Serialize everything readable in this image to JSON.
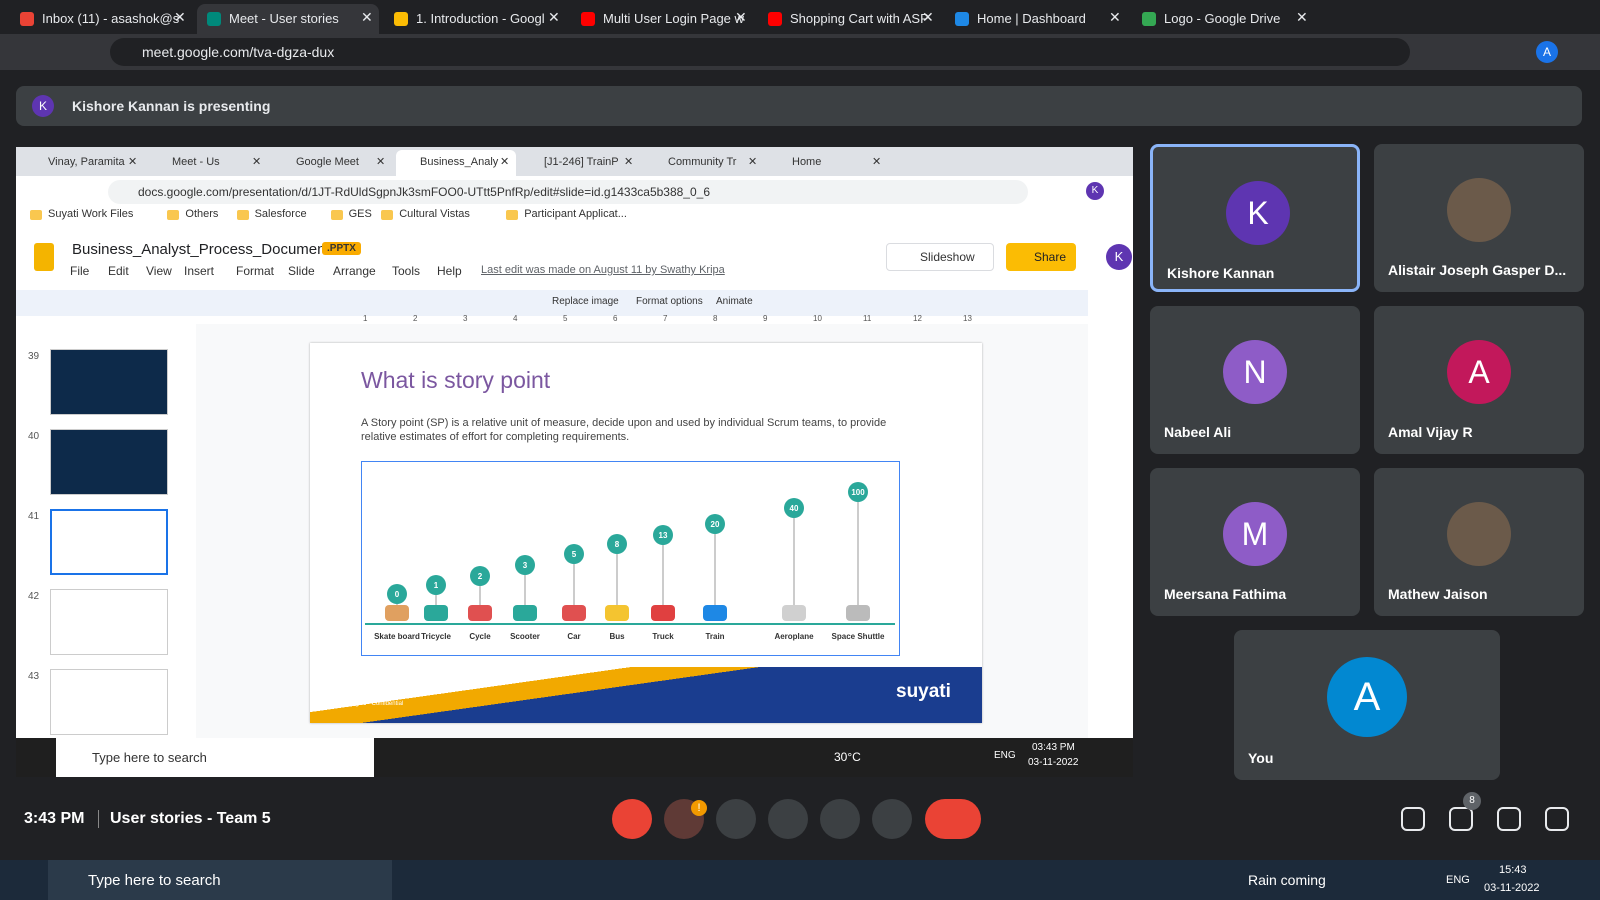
{
  "browser": {
    "tabs": [
      "Inbox (11) - asashok@s",
      "Meet - User stories",
      "1. Introduction - Googl",
      "Multi User Login Page w",
      "Shopping Cart with ASP",
      "Home | Dashboard",
      "Logo - Google Drive"
    ],
    "url": "meet.google.com/tva-dgza-dux",
    "profile": "A"
  },
  "banner": {
    "avatar": "K",
    "text": "Kishore Kannan is presenting"
  },
  "shared": {
    "tabs": [
      "Vinay, Paramita",
      "Meet - Us",
      "Google Meet",
      "Business_Analy",
      "[J1-246] TrainP",
      "Community Tr",
      "Home"
    ],
    "url": "docs.google.com/presentation/d/1JT-RdUldSgpnJk3smFOO0-UTtt5PnfRp/edit#slide=id.g1433ca5b388_0_6",
    "profile": "K",
    "bookmarks": [
      "Suyati Work Files",
      "Others",
      "Salesforce",
      "GES",
      "Cultural Vistas",
      "Participant Applicat..."
    ],
    "doc_title": "Business_Analyst_Process_Document",
    "badge": ".PPTX",
    "menu": [
      "File",
      "Edit",
      "View",
      "Insert",
      "Format",
      "Slide",
      "Arrange",
      "Tools",
      "Help"
    ],
    "last_edit": "Last edit was made on August 11 by Swathy Kripa",
    "slideshow": "Slideshow",
    "share": "Share",
    "user": "K",
    "toolbar": [
      "Replace image",
      "Format options",
      "Animate"
    ],
    "ruler": [
      "1",
      "2",
      "3",
      "4",
      "5",
      "6",
      "7",
      "8",
      "9",
      "10",
      "11",
      "12",
      "13"
    ],
    "thumbnails": [
      "39",
      "40",
      "41",
      "42",
      "43"
    ],
    "slide": {
      "title": "What is story point",
      "body": "A Story point (SP) is a relative unit of measure, decide upon and used by individual Scrum teams, to provide relative estimates of effort for completing requirements.",
      "items": [
        {
          "label": "Skate board",
          "points": 0
        },
        {
          "label": "Tricycle",
          "points": 1
        },
        {
          "label": "Cycle",
          "points": 2
        },
        {
          "label": "Scooter",
          "points": 3
        },
        {
          "label": "Car",
          "points": 5
        },
        {
          "label": "Bus",
          "points": 8
        },
        {
          "label": "Truck",
          "points": 13
        },
        {
          "label": "Train",
          "points": 20
        },
        {
          "label": "Aeroplane",
          "points": 40
        },
        {
          "label": "Space Shuttle",
          "points": 100
        }
      ],
      "copyright": "Copyright © 2021",
      "company": "Suyati Technologies - Confidential",
      "logo": "suyati"
    },
    "taskbar": {
      "search": "Type here to search",
      "weather": "30°C",
      "lang": "ENG",
      "time": "03:43 PM",
      "date": "03-11-2022"
    }
  },
  "participants": [
    {
      "name": "Kishore Kannan",
      "initial": "K",
      "color": "#5e35b1"
    },
    {
      "name": "Alistair Joseph Gasper D..."
    },
    {
      "name": "Nabeel Ali",
      "initial": "N",
      "color": "#8e5cc7"
    },
    {
      "name": "Amal Vijay R",
      "initial": "A",
      "color": "#c2185b"
    },
    {
      "name": "Meersana Fathima",
      "initial": "M",
      "color": "#8e5cc7"
    },
    {
      "name": "Mathew Jaison"
    },
    {
      "name": "You",
      "initial": "A",
      "color": "#0288d1"
    }
  ],
  "controls": {
    "time": "3:43 PM",
    "meeting": "User stories - Team 5",
    "people_count": 8,
    "alert": "!"
  },
  "taskbar": {
    "search": "Type here to search",
    "weather": "Rain coming",
    "lang": "ENG",
    "time": "15:43",
    "date": "03-11-2022"
  }
}
